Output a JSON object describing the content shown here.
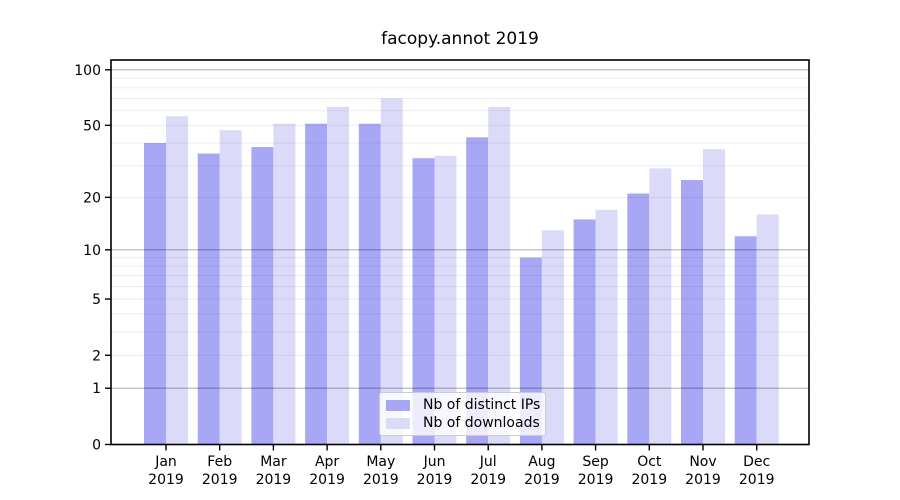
{
  "chart_data": {
    "type": "bar",
    "title": "facopy.annot 2019",
    "y_scale": "log1p",
    "categories": [
      "Jan",
      "Feb",
      "Mar",
      "Apr",
      "May",
      "Jun",
      "Jul",
      "Aug",
      "Sep",
      "Oct",
      "Nov",
      "Dec"
    ],
    "category_year": "2019",
    "series": [
      {
        "name": "Nb of distinct IPs",
        "color": "#a7a7f5",
        "values": [
          40,
          35,
          38,
          51,
          51,
          33,
          43,
          9,
          15,
          21,
          25,
          12
        ]
      },
      {
        "name": "Nb of downloads",
        "color": "#dbdbf9",
        "values": [
          56,
          47,
          51,
          63,
          70,
          34,
          63,
          13,
          17,
          29,
          37,
          16
        ]
      }
    ],
    "y_tick_labels": [
      0,
      1,
      2,
      5,
      10,
      20,
      50,
      100
    ],
    "y_major_gridlines": [
      1,
      10,
      100
    ],
    "y_minor_gridlines": [
      2,
      3,
      4,
      5,
      6,
      7,
      8,
      9,
      20,
      30,
      40,
      50,
      60,
      70,
      80,
      90
    ],
    "ylim": [
      0,
      113
    ],
    "grid": "both",
    "legend_position": "lower-center",
    "colors": {
      "spine": "#000000",
      "text": "#000000",
      "grid_major": "rgba(0,0,0,0.30)",
      "grid_minor": "rgba(0,0,0,0.065)",
      "background": "#ffffff"
    }
  }
}
